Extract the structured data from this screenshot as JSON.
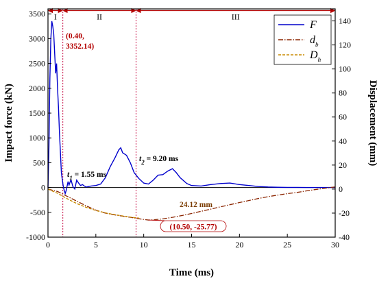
{
  "chart_data": {
    "type": "line",
    "xlabel": "Time (ms)",
    "ylabel_left": "Impact force (kN)",
    "ylabel_right": "Displacement (mm)",
    "xlim": [
      0,
      30
    ],
    "ylim_left": [
      -1000,
      3600
    ],
    "ylim_right": [
      -40,
      150
    ],
    "x_ticks": [
      0,
      5,
      10,
      15,
      20,
      25,
      30
    ],
    "y_ticks_left": [
      -1000,
      -500,
      0,
      500,
      1000,
      1500,
      2000,
      2500,
      3000,
      3500
    ],
    "y_ticks_right": [
      -40,
      -20,
      0,
      20,
      40,
      60,
      80,
      100,
      120,
      140
    ],
    "grid": false,
    "legend_position": "top-right",
    "colors": {
      "F": "#0000cc",
      "d_b": "#8b2500",
      "D_h": "#c88a00",
      "region_line": "#cc2255",
      "annotation": "#b30000"
    },
    "regions": [
      {
        "label": "I",
        "x_start": 0,
        "x_end": 1.55
      },
      {
        "label": "II",
        "x_start": 1.55,
        "x_end": 9.2
      },
      {
        "label": "III",
        "x_start": 9.2,
        "x_end": 30
      }
    ],
    "series": [
      {
        "name": "F",
        "axis": "left",
        "points": [
          [
            0,
            0
          ],
          [
            0.1,
            800
          ],
          [
            0.2,
            2200
          ],
          [
            0.3,
            3000
          ],
          [
            0.4,
            3352.14
          ],
          [
            0.5,
            3250
          ],
          [
            0.6,
            3100
          ],
          [
            0.7,
            2700
          ],
          [
            0.8,
            2300
          ],
          [
            0.9,
            2500
          ],
          [
            1.0,
            2000
          ],
          [
            1.1,
            1600
          ],
          [
            1.2,
            1100
          ],
          [
            1.3,
            700
          ],
          [
            1.4,
            300
          ],
          [
            1.5,
            150
          ],
          [
            1.6,
            20
          ],
          [
            1.7,
            -60
          ],
          [
            1.8,
            -120
          ],
          [
            1.9,
            -60
          ],
          [
            2.0,
            30
          ],
          [
            2.1,
            120
          ],
          [
            2.2,
            50
          ],
          [
            2.4,
            160
          ],
          [
            2.6,
            20
          ],
          [
            2.8,
            -30
          ],
          [
            3.0,
            150
          ],
          [
            3.2,
            90
          ],
          [
            3.4,
            40
          ],
          [
            3.6,
            60
          ],
          [
            3.8,
            30
          ],
          [
            4.0,
            10
          ],
          [
            4.5,
            30
          ],
          [
            5.0,
            40
          ],
          [
            5.5,
            70
          ],
          [
            6.0,
            200
          ],
          [
            6.5,
            420
          ],
          [
            7.0,
            600
          ],
          [
            7.4,
            760
          ],
          [
            7.6,
            800
          ],
          [
            7.8,
            700
          ],
          [
            8.2,
            650
          ],
          [
            8.6,
            500
          ],
          [
            9.0,
            300
          ],
          [
            9.5,
            180
          ],
          [
            10.0,
            90
          ],
          [
            10.5,
            70
          ],
          [
            11.0,
            150
          ],
          [
            11.5,
            250
          ],
          [
            12.0,
            260
          ],
          [
            12.5,
            330
          ],
          [
            13.0,
            380
          ],
          [
            13.4,
            300
          ],
          [
            13.8,
            200
          ],
          [
            14.5,
            80
          ],
          [
            15.0,
            40
          ],
          [
            16.0,
            30
          ],
          [
            17.0,
            60
          ],
          [
            18.0,
            80
          ],
          [
            19.0,
            90
          ],
          [
            20.0,
            60
          ],
          [
            21.0,
            40
          ],
          [
            22.0,
            20
          ],
          [
            23.0,
            10
          ],
          [
            24.0,
            5
          ],
          [
            25.0,
            3
          ],
          [
            26.0,
            2
          ],
          [
            27.0,
            1
          ],
          [
            28.0,
            0
          ],
          [
            29.0,
            0
          ],
          [
            30.0,
            0
          ]
        ]
      },
      {
        "name": "d_b",
        "axis": "right",
        "points": [
          [
            0,
            0
          ],
          [
            1,
            -2
          ],
          [
            2,
            -6
          ],
          [
            3,
            -10
          ],
          [
            4,
            -14
          ],
          [
            5,
            -17.5
          ],
          [
            6,
            -20
          ],
          [
            7,
            -21.5
          ],
          [
            8,
            -22.8
          ],
          [
            9,
            -24
          ],
          [
            10,
            -25.3
          ],
          [
            10.5,
            -25.77
          ],
          [
            11,
            -25.6
          ],
          [
            12,
            -24.8
          ],
          [
            13,
            -23.5
          ],
          [
            14,
            -22
          ],
          [
            15,
            -20.3
          ],
          [
            16,
            -18.5
          ],
          [
            17,
            -16.7
          ],
          [
            18,
            -14.8
          ],
          [
            19,
            -13
          ],
          [
            20,
            -11.2
          ],
          [
            21,
            -9.5
          ],
          [
            22,
            -7.8
          ],
          [
            23,
            -6.3
          ],
          [
            24,
            -5
          ],
          [
            25,
            -3.8
          ],
          [
            26,
            -2.8
          ],
          [
            27,
            -1.5
          ],
          [
            28,
            -0.3
          ],
          [
            29,
            0.8
          ],
          [
            30,
            1.8
          ]
        ]
      },
      {
        "name": "D_h",
        "axis": "right",
        "points": [
          [
            0,
            0
          ],
          [
            1,
            -3.5
          ],
          [
            2,
            -8
          ],
          [
            3,
            -12
          ],
          [
            4,
            -15.2
          ],
          [
            5,
            -17.8
          ],
          [
            6,
            -19.8
          ],
          [
            7,
            -21.3
          ],
          [
            8,
            -22.6
          ],
          [
            9,
            -23.8
          ],
          [
            9.5,
            -24.12
          ]
        ]
      }
    ],
    "annotations": {
      "peak": {
        "text_line1": "(0.40,",
        "text_line2": "3352.14)",
        "x": 0.4,
        "y": 3352.14
      },
      "t1": {
        "sym": "t",
        "sub": "1",
        "value": " = 1.55 ms"
      },
      "t2": {
        "sym": "t",
        "sub": "2",
        "value": " = 9.20 ms"
      },
      "dh_end": {
        "text": "24.12 mm"
      },
      "db_min": {
        "text": "(10.50, -25.77)",
        "x": 10.5,
        "y": -25.77
      }
    },
    "legend": [
      {
        "sym": "F",
        "sub": ""
      },
      {
        "sym": "d",
        "sub": "b"
      },
      {
        "sym": "D",
        "sub": "h"
      }
    ]
  }
}
